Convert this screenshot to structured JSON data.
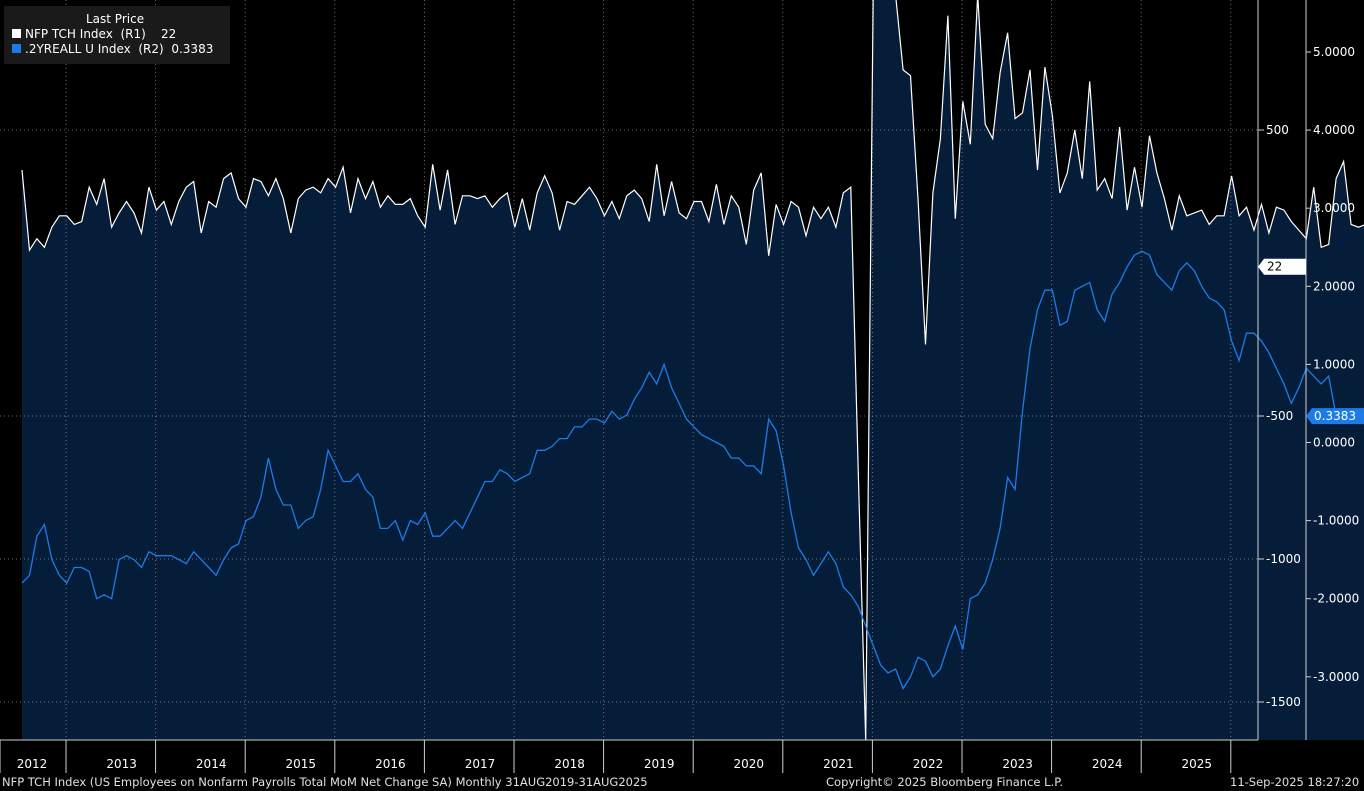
{
  "legend": {
    "header": "Last Price",
    "series": [
      {
        "label": "NFP TCH Index  (R1)",
        "value": "22",
        "color": "#ffffff"
      },
      {
        "label": ".2YREALL U Index  (R2)",
        "value": "0.3383",
        "color": "#1e7be6"
      }
    ]
  },
  "footer": {
    "left": "NFP TCH Index (US Employees on Nonfarm Payrolls Total MoM Net Change SA)  Monthly 31AUG2019-31AUG2025",
    "center": "Copyright© 2025 Bloomberg Finance L.P.",
    "right": "11-Sep-2025 18:27:20"
  },
  "chart_data": {
    "type": "line",
    "x_tick_labels": [
      "2012",
      "2013",
      "2014",
      "2015",
      "2016",
      "2017",
      "2018",
      "2019",
      "2020",
      "2021",
      "2022",
      "2023",
      "2024",
      "2025"
    ],
    "axes": {
      "R1": {
        "ticks": [
          "500",
          "-500",
          "-1000",
          "-1500"
        ],
        "range": [
          -1750,
          1000
        ]
      },
      "R2": {
        "ticks": [
          "5.0000",
          "4.0000",
          "3.0000",
          "2.0000",
          "1.0000",
          "0.0000",
          "-1.0000",
          "-2.0000",
          "-3.0000"
        ],
        "range": [
          -3.8,
          5.7
        ]
      }
    },
    "last_value_labels": {
      "R1": "22",
      "R2": "0.3383"
    },
    "grid": true,
    "series": [
      {
        "name": "NFP TCH Index",
        "axis": "R1",
        "color": "#ffffff",
        "fill": "#061d3a",
        "start": "2012-01",
        "values": [
          360,
          80,
          120,
          90,
          160,
          200,
          200,
          170,
          180,
          300,
          240,
          330,
          160,
          210,
          250,
          210,
          140,
          300,
          220,
          250,
          170,
          250,
          300,
          320,
          140,
          250,
          230,
          330,
          350,
          260,
          230,
          330,
          320,
          270,
          330,
          260,
          140,
          260,
          290,
          300,
          280,
          330,
          300,
          370,
          210,
          330,
          260,
          320,
          230,
          270,
          240,
          240,
          260,
          200,
          160,
          380,
          220,
          360,
          170,
          270,
          270,
          260,
          270,
          230,
          260,
          280,
          160,
          260,
          150,
          280,
          340,
          280,
          150,
          250,
          240,
          270,
          300,
          260,
          200,
          250,
          190,
          270,
          290,
          260,
          180,
          380,
          200,
          320,
          210,
          190,
          250,
          250,
          180,
          310,
          170,
          270,
          230,
          100,
          290,
          350,
          60,
          240,
          170,
          250,
          230,
          130,
          230,
          190,
          230,
          160,
          280,
          300,
          -700,
          -20700,
          2830,
          4800,
          1700,
          1500,
          710,
          690,
          260,
          -250,
          280,
          470,
          900,
          190,
          600,
          450,
          1100,
          520,
          470,
          700,
          840,
          540,
          560,
          710,
          360,
          720,
          550,
          280,
          350,
          500,
          330,
          670,
          290,
          330,
          260,
          510,
          220,
          370,
          230,
          480,
          350,
          260,
          150,
          270,
          200,
          210,
          220,
          170,
          200,
          200,
          340,
          200,
          230,
          150,
          240,
          140,
          230,
          220,
          180,
          150,
          120,
          300,
          90,
          100,
          330,
          390,
          170,
          160,
          170,
          230,
          140,
          100,
          20,
          100,
          170,
          120,
          22
        ]
      },
      {
        "name": ".2YREALL U Index",
        "axis": "R2",
        "color": "#1e7be6",
        "start": "2012-01",
        "values": [
          -1.8,
          -1.7,
          -1.2,
          -1.05,
          -1.5,
          -1.7,
          -1.8,
          -1.6,
          -1.6,
          -1.65,
          -2.0,
          -1.95,
          -2.0,
          -1.5,
          -1.45,
          -1.5,
          -1.6,
          -1.4,
          -1.45,
          -1.45,
          -1.45,
          -1.5,
          -1.55,
          -1.4,
          -1.5,
          -1.6,
          -1.7,
          -1.5,
          -1.35,
          -1.3,
          -1.0,
          -0.95,
          -0.7,
          -0.2,
          -0.6,
          -0.8,
          -0.8,
          -1.1,
          -1.0,
          -0.95,
          -0.6,
          -0.1,
          -0.3,
          -0.5,
          -0.5,
          -0.4,
          -0.6,
          -0.7,
          -1.1,
          -1.1,
          -1.0,
          -1.25,
          -1.0,
          -1.05,
          -0.9,
          -1.2,
          -1.2,
          -1.1,
          -1.0,
          -1.1,
          -0.9,
          -0.7,
          -0.5,
          -0.5,
          -0.35,
          -0.4,
          -0.5,
          -0.45,
          -0.4,
          -0.1,
          -0.1,
          -0.05,
          0.05,
          0.05,
          0.2,
          0.2,
          0.3,
          0.3,
          0.25,
          0.4,
          0.3,
          0.35,
          0.55,
          0.7,
          0.9,
          0.75,
          1.0,
          0.7,
          0.5,
          0.3,
          0.2,
          0.1,
          0.05,
          0.0,
          -0.05,
          -0.2,
          -0.2,
          -0.3,
          -0.3,
          -0.4,
          0.3,
          0.15,
          -0.3,
          -0.9,
          -1.35,
          -1.5,
          -1.7,
          -1.55,
          -1.4,
          -1.55,
          -1.85,
          -1.95,
          -2.1,
          -2.35,
          -2.6,
          -2.85,
          -2.95,
          -2.9,
          -3.15,
          -3.0,
          -2.75,
          -2.8,
          -3.0,
          -2.9,
          -2.6,
          -2.35,
          -2.65,
          -2.0,
          -1.95,
          -1.8,
          -1.5,
          -1.1,
          -0.45,
          -0.6,
          0.4,
          1.2,
          1.7,
          1.95,
          1.95,
          1.5,
          1.55,
          1.95,
          2.0,
          2.05,
          1.7,
          1.55,
          1.9,
          2.05,
          2.25,
          2.4,
          2.45,
          2.4,
          2.15,
          2.05,
          1.95,
          2.2,
          2.3,
          2.2,
          2.0,
          1.85,
          1.8,
          1.7,
          1.3,
          1.05,
          1.4,
          1.4,
          1.3,
          1.15,
          0.95,
          0.75,
          0.5,
          0.7,
          0.95,
          0.85,
          0.75,
          0.85,
          0.3383
        ]
      }
    ]
  }
}
